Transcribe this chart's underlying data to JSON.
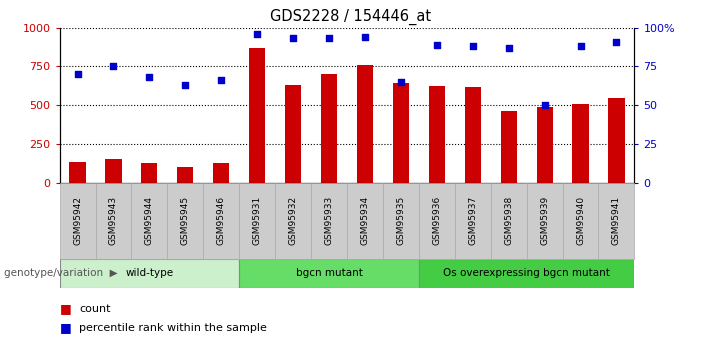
{
  "title": "GDS2228 / 154446_at",
  "samples": [
    "GSM95942",
    "GSM95943",
    "GSM95944",
    "GSM95945",
    "GSM95946",
    "GSM95931",
    "GSM95932",
    "GSM95933",
    "GSM95934",
    "GSM95935",
    "GSM95936",
    "GSM95937",
    "GSM95938",
    "GSM95939",
    "GSM95940",
    "GSM95941"
  ],
  "counts": [
    135,
    155,
    125,
    100,
    125,
    870,
    630,
    700,
    760,
    640,
    625,
    620,
    460,
    490,
    510,
    545
  ],
  "percentiles": [
    70,
    75,
    68,
    63,
    66,
    96,
    93,
    93,
    94,
    65,
    89,
    88,
    87,
    50,
    88,
    91
  ],
  "groups": [
    {
      "label": "wild-type",
      "start": 0,
      "end": 5,
      "color": "#ccf0cc"
    },
    {
      "label": "bgcn mutant",
      "start": 5,
      "end": 10,
      "color": "#66dd66"
    },
    {
      "label": "Os overexpressing bgcn mutant",
      "start": 10,
      "end": 16,
      "color": "#44cc44"
    }
  ],
  "bar_color": "#cc0000",
  "dot_color": "#0000cc",
  "ylim_left": [
    0,
    1000
  ],
  "ylim_right": [
    0,
    100
  ],
  "yticks_left": [
    0,
    250,
    500,
    750,
    1000
  ],
  "yticks_right": [
    0,
    25,
    50,
    75,
    100
  ],
  "tick_bg": "#cccccc",
  "legend_count_color": "#cc0000",
  "legend_pct_color": "#0000cc"
}
